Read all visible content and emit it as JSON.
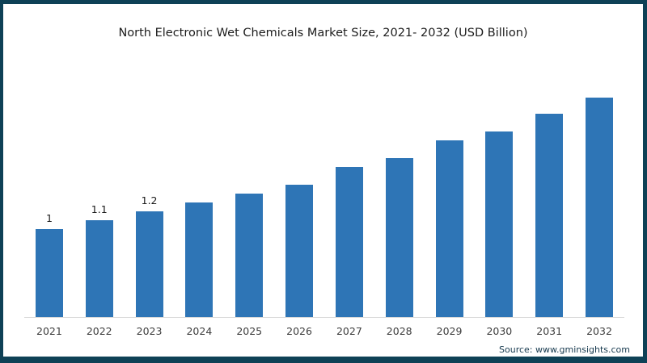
{
  "frame": {
    "border_color": "#0e4156",
    "background_color": "#ffffff"
  },
  "chart_data": {
    "type": "bar",
    "title": "North Electronic Wet Chemicals Market Size, 2021- 2032 (USD Billion)",
    "categories": [
      "2021",
      "2022",
      "2023",
      "2024",
      "2025",
      "2026",
      "2027",
      "2028",
      "2029",
      "2030",
      "2031",
      "2032"
    ],
    "values": [
      1.0,
      1.1,
      1.2,
      1.3,
      1.4,
      1.5,
      1.7,
      1.8,
      2.0,
      2.1,
      2.3,
      2.5
    ],
    "data_labels": [
      "1",
      "1.1",
      "1.2",
      "",
      "",
      "",
      "",
      "",
      "",
      "",
      "",
      ""
    ],
    "xlabel": "",
    "ylabel": "",
    "ylim": [
      0,
      2.55
    ],
    "grid": false,
    "legend": false,
    "bar_color": "#2e75b6",
    "axis_line_color": "#d8d8d8",
    "label_color": "#1a1a1a",
    "tick_label_color": "#3d3d3d"
  },
  "source": {
    "text": "Source: www.gminsights.com",
    "color": "#16394e"
  }
}
